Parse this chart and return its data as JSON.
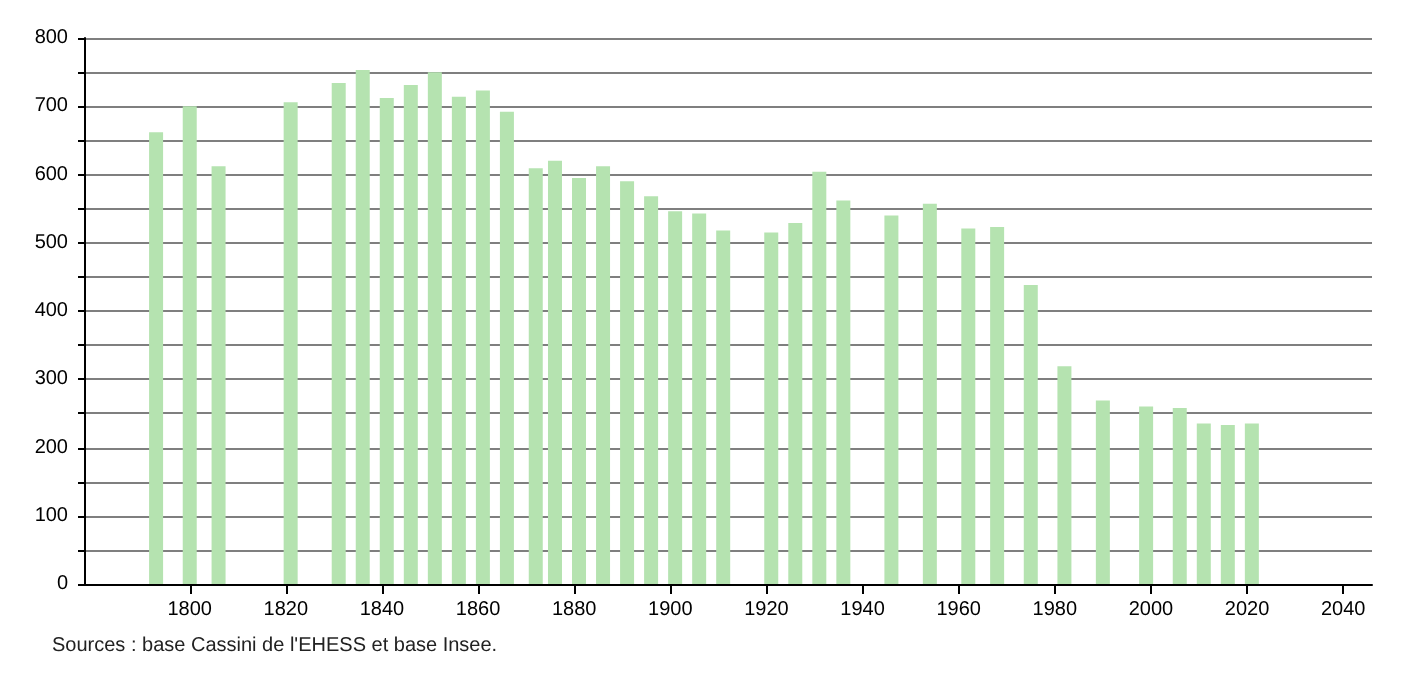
{
  "chart_data": {
    "type": "bar",
    "annotations": [
      "Sources : base Cassini de l'EHESS et base Insee."
    ],
    "x": [
      1793,
      1800,
      1806,
      1821,
      1831,
      1836,
      1841,
      1846,
      1851,
      1856,
      1861,
      1866,
      1872,
      1876,
      1881,
      1886,
      1891,
      1896,
      1901,
      1906,
      1911,
      1921,
      1926,
      1931,
      1936,
      1946,
      1954,
      1962,
      1968,
      1975,
      1982,
      1990,
      1999,
      2006,
      2011,
      2016,
      2021
    ],
    "values": [
      662,
      700,
      612,
      706,
      734,
      753,
      712,
      731,
      750,
      714,
      723,
      692,
      609,
      620,
      595,
      612,
      590,
      568,
      546,
      543,
      518,
      515,
      529,
      604,
      562,
      540,
      557,
      521,
      523,
      438,
      319,
      269,
      260,
      258,
      235,
      233,
      235
    ],
    "color": "#b5e3b0",
    "xlim": [
      1778,
      2046
    ],
    "xticks": [
      1800,
      1820,
      1840,
      1860,
      1880,
      1900,
      1920,
      1940,
      1960,
      1980,
      2000,
      2020,
      2040
    ],
    "ylim": [
      0,
      800
    ],
    "yticks": [
      0,
      {
        "value": 50,
        "label": null
      },
      100,
      {
        "value": 150,
        "label": null
      },
      200,
      {
        "value": 250,
        "label": null
      },
      300,
      {
        "value": 350,
        "label": null
      },
      400,
      {
        "value": 450,
        "label": null
      },
      500,
      {
        "value": 550,
        "label": null
      },
      600,
      {
        "value": 650,
        "label": null
      },
      700,
      {
        "value": 750,
        "label": null
      },
      800
    ],
    "grid": "y"
  }
}
